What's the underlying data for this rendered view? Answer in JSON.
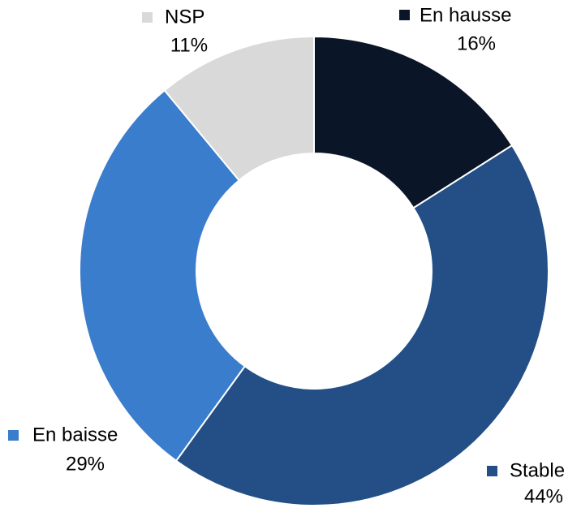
{
  "chart_data": {
    "type": "donut",
    "categories": [
      "En hausse",
      "Stable",
      "En baisse",
      "NSP"
    ],
    "values": [
      16,
      44,
      29,
      11
    ],
    "value_labels": [
      "16%",
      "44%",
      "29%",
      "11%"
    ],
    "colors": [
      "#0a1628",
      "#234f86",
      "#3a7dcd",
      "#d9d9d9"
    ]
  }
}
